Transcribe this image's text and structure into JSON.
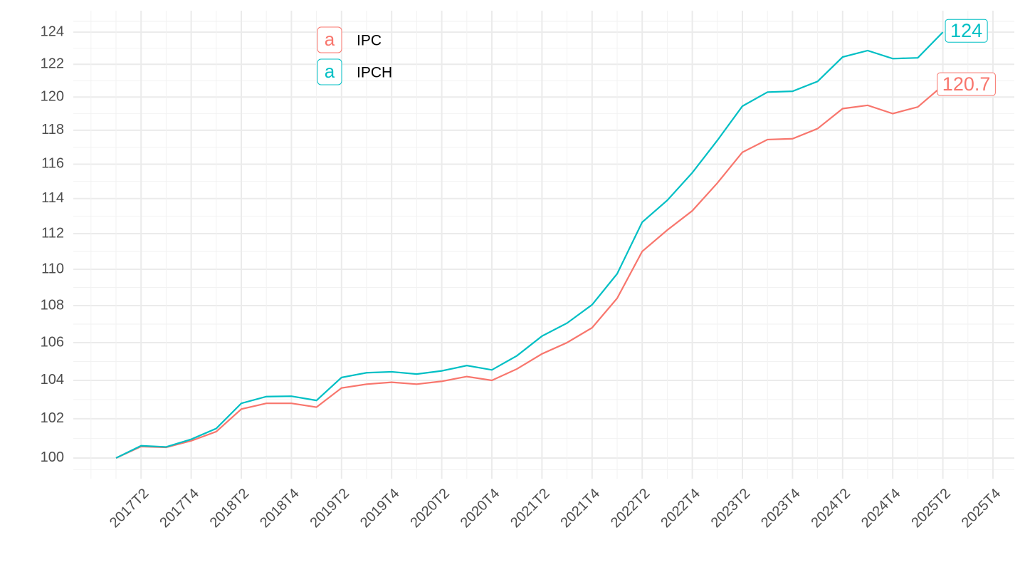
{
  "chart_data": {
    "type": "line",
    "categories": [
      null,
      "2017T2",
      null,
      "2017T4",
      null,
      "2018T2",
      null,
      "2018T4",
      null,
      "2019T2",
      null,
      "2019T4",
      null,
      "2020T2",
      null,
      "2020T4",
      null,
      "2021T2",
      null,
      "2021T4",
      null,
      "2022T2",
      null,
      "2022T4",
      null,
      "2023T2",
      null,
      "2023T4",
      null,
      "2024T2",
      null,
      "2024T4",
      null,
      "2025T2",
      null,
      "2025T4"
    ],
    "series": [
      {
        "name": "IPC",
        "color": "#F8766D",
        "values": [
          100,
          100.58,
          100.54,
          100.87,
          101.34,
          102.5,
          102.8,
          102.8,
          102.6,
          103.6,
          103.8,
          103.9,
          103.8,
          103.95,
          104.2,
          104.0,
          104.6,
          105.4,
          106.0,
          106.8,
          108.4,
          111.0,
          112.2,
          113.3,
          114.9,
          116.7,
          117.45,
          117.5,
          118.1,
          119.3,
          119.5,
          119.0,
          119.4,
          120.7,
          null,
          null
        ]
      },
      {
        "name": "IPCH",
        "color": "#00BFC4",
        "values": [
          100,
          100.62,
          100.56,
          100.95,
          101.5,
          102.8,
          103.15,
          103.17,
          102.95,
          104.15,
          104.4,
          104.45,
          104.33,
          104.5,
          104.78,
          104.55,
          105.3,
          106.35,
          107.05,
          108.05,
          109.75,
          112.65,
          113.9,
          115.5,
          117.4,
          119.45,
          120.3,
          120.35,
          120.95,
          122.45,
          122.85,
          122.35,
          122.4,
          124,
          null,
          null
        ]
      }
    ],
    "legend_key": "a",
    "log_scale": true,
    "grid": true,
    "ylim": [
      98.96,
      125.35
    ],
    "yticks": [
      100,
      102,
      104,
      106,
      108,
      110,
      112,
      114,
      116,
      118,
      120,
      122,
      124
    ]
  }
}
